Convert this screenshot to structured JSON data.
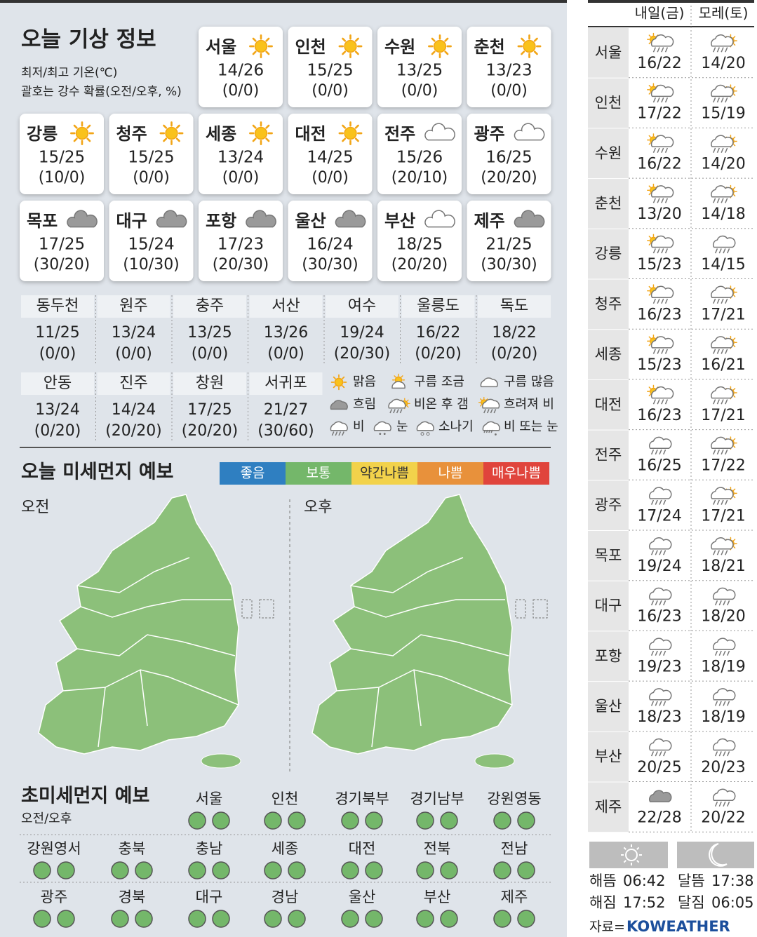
{
  "header": {
    "title": "오늘 기상 정보",
    "note1": "최저/최고 기온(℃)",
    "note2": "괄호는 강수 확률(오전/오후, %)"
  },
  "cards": [
    {
      "city": "서울",
      "temp": "14/26",
      "precip": "(0/0)",
      "icon": "sun"
    },
    {
      "city": "인천",
      "temp": "15/25",
      "precip": "(0/0)",
      "icon": "sun"
    },
    {
      "city": "수원",
      "temp": "13/25",
      "precip": "(0/0)",
      "icon": "sun"
    },
    {
      "city": "춘천",
      "temp": "13/23",
      "precip": "(0/0)",
      "icon": "sun"
    },
    {
      "city": "강릉",
      "temp": "15/25",
      "precip": "(10/0)",
      "icon": "sun"
    },
    {
      "city": "청주",
      "temp": "15/25",
      "precip": "(0/0)",
      "icon": "sun"
    },
    {
      "city": "세종",
      "temp": "13/24",
      "precip": "(0/0)",
      "icon": "sun"
    },
    {
      "city": "대전",
      "temp": "14/25",
      "precip": "(0/0)",
      "icon": "sun"
    },
    {
      "city": "전주",
      "temp": "15/26",
      "precip": "(20/10)",
      "icon": "cloudy"
    },
    {
      "city": "광주",
      "temp": "16/25",
      "precip": "(20/20)",
      "icon": "cloudy"
    },
    {
      "city": "목포",
      "temp": "17/25",
      "precip": "(30/20)",
      "icon": "overcast"
    },
    {
      "city": "대구",
      "temp": "15/24",
      "precip": "(10/30)",
      "icon": "overcast"
    },
    {
      "city": "포항",
      "temp": "17/23",
      "precip": "(20/30)",
      "icon": "overcast"
    },
    {
      "city": "울산",
      "temp": "16/24",
      "precip": "(30/30)",
      "icon": "overcast"
    },
    {
      "city": "부산",
      "temp": "18/25",
      "precip": "(20/20)",
      "icon": "cloudy"
    },
    {
      "city": "제주",
      "temp": "21/25",
      "precip": "(30/30)",
      "icon": "overcast"
    }
  ],
  "small_cities": [
    {
      "city": "동두천",
      "temp": "11/25",
      "precip": "(0/0)"
    },
    {
      "city": "원주",
      "temp": "13/24",
      "precip": "(0/0)"
    },
    {
      "city": "충주",
      "temp": "13/25",
      "precip": "(0/0)"
    },
    {
      "city": "서산",
      "temp": "13/26",
      "precip": "(0/0)"
    },
    {
      "city": "여수",
      "temp": "19/24",
      "precip": "(20/30)"
    },
    {
      "city": "울릉도",
      "temp": "16/22",
      "precip": "(0/20)"
    },
    {
      "city": "독도",
      "temp": "18/22",
      "precip": "(0/20)"
    },
    {
      "city": "안동",
      "temp": "13/24",
      "precip": "(0/20)"
    },
    {
      "city": "진주",
      "temp": "14/24",
      "precip": "(20/20)"
    },
    {
      "city": "창원",
      "temp": "17/25",
      "precip": "(20/20)"
    },
    {
      "city": "서귀포",
      "temp": "21/27",
      "precip": "(30/60)"
    }
  ],
  "legend": [
    {
      "label": "맑음",
      "icon": "sun"
    },
    {
      "label": "구름 조금",
      "icon": "few-clouds"
    },
    {
      "label": "구름 많음",
      "icon": "cloudy"
    },
    {
      "label": "흐림",
      "icon": "overcast"
    },
    {
      "label": "비온 후 갬",
      "icon": "rain-clearing"
    },
    {
      "label": "흐려져 비",
      "icon": "cloudy-rain"
    },
    {
      "label": "비",
      "icon": "rain"
    },
    {
      "label": "눈",
      "icon": "snow"
    },
    {
      "label": "소나기",
      "icon": "shower"
    },
    {
      "label": "비 또는 눈",
      "icon": "rain-snow"
    }
  ],
  "fine_dust": {
    "title": "오늘 미세먼지 예보",
    "scale": [
      {
        "label": "좋음",
        "color": "#2f7fc1"
      },
      {
        "label": "보통",
        "color": "#74b76a"
      },
      {
        "label": "약간나쁨",
        "color": "#f2d24b"
      },
      {
        "label": "나쁨",
        "color": "#e8913b"
      },
      {
        "label": "매우나쁨",
        "color": "#e0443c"
      }
    ],
    "maps": [
      {
        "label": "오전",
        "level": "보통"
      },
      {
        "label": "오후",
        "level": "보통"
      }
    ]
  },
  "ultrafine_dust": {
    "title": "초미세먼지 예보",
    "note": "오전/오후",
    "regions": [
      {
        "name": "서울",
        "levels": [
          "보통",
          "보통"
        ]
      },
      {
        "name": "인천",
        "levels": [
          "보통",
          "보통"
        ]
      },
      {
        "name": "경기북부",
        "levels": [
          "보통",
          "보통"
        ]
      },
      {
        "name": "경기남부",
        "levels": [
          "보통",
          "보통"
        ]
      },
      {
        "name": "강원영동",
        "levels": [
          "보통",
          "보통"
        ]
      },
      {
        "name": "강원영서",
        "levels": [
          "보통",
          "보통"
        ]
      },
      {
        "name": "충북",
        "levels": [
          "보통",
          "보통"
        ]
      },
      {
        "name": "충남",
        "levels": [
          "보통",
          "보통"
        ]
      },
      {
        "name": "세종",
        "levels": [
          "보통",
          "보통"
        ]
      },
      {
        "name": "대전",
        "levels": [
          "보통",
          "보통"
        ]
      },
      {
        "name": "전북",
        "levels": [
          "보통",
          "보통"
        ]
      },
      {
        "name": "전남",
        "levels": [
          "보통",
          "보통"
        ]
      },
      {
        "name": "광주",
        "levels": [
          "보통",
          "보통"
        ]
      },
      {
        "name": "경북",
        "levels": [
          "보통",
          "보통"
        ]
      },
      {
        "name": "대구",
        "levels": [
          "보통",
          "보통"
        ]
      },
      {
        "name": "경남",
        "levels": [
          "보통",
          "보통"
        ]
      },
      {
        "name": "울산",
        "levels": [
          "보통",
          "보통"
        ]
      },
      {
        "name": "부산",
        "levels": [
          "보통",
          "보통"
        ]
      },
      {
        "name": "제주",
        "levels": [
          "보통",
          "보통"
        ]
      }
    ]
  },
  "forecast": {
    "days": [
      "내일(금)",
      "모레(토)"
    ],
    "rows": [
      {
        "city": "서울",
        "d1": {
          "icon": "cloudy-rain",
          "temp": "16/22"
        },
        "d2": {
          "icon": "rain-clearing",
          "temp": "14/20"
        }
      },
      {
        "city": "인천",
        "d1": {
          "icon": "cloudy-rain",
          "temp": "17/22"
        },
        "d2": {
          "icon": "rain-clearing",
          "temp": "15/19"
        }
      },
      {
        "city": "수원",
        "d1": {
          "icon": "cloudy-rain",
          "temp": "16/22"
        },
        "d2": {
          "icon": "rain-clearing",
          "temp": "14/20"
        }
      },
      {
        "city": "춘천",
        "d1": {
          "icon": "cloudy-rain",
          "temp": "13/20"
        },
        "d2": {
          "icon": "rain-clearing",
          "temp": "14/18"
        }
      },
      {
        "city": "강릉",
        "d1": {
          "icon": "cloudy-rain",
          "temp": "15/23"
        },
        "d2": {
          "icon": "rain",
          "temp": "14/15"
        }
      },
      {
        "city": "청주",
        "d1": {
          "icon": "cloudy-rain",
          "temp": "16/23"
        },
        "d2": {
          "icon": "rain-clearing",
          "temp": "17/21"
        }
      },
      {
        "city": "세종",
        "d1": {
          "icon": "cloudy-rain",
          "temp": "15/23"
        },
        "d2": {
          "icon": "rain-clearing",
          "temp": "16/21"
        }
      },
      {
        "city": "대전",
        "d1": {
          "icon": "cloudy-rain",
          "temp": "16/23"
        },
        "d2": {
          "icon": "rain-clearing",
          "temp": "17/21"
        }
      },
      {
        "city": "전주",
        "d1": {
          "icon": "rain",
          "temp": "16/25"
        },
        "d2": {
          "icon": "rain-clearing",
          "temp": "17/22"
        }
      },
      {
        "city": "광주",
        "d1": {
          "icon": "rain",
          "temp": "17/24"
        },
        "d2": {
          "icon": "rain-clearing",
          "temp": "17/21"
        }
      },
      {
        "city": "목포",
        "d1": {
          "icon": "rain",
          "temp": "19/24"
        },
        "d2": {
          "icon": "rain-clearing",
          "temp": "18/21"
        }
      },
      {
        "city": "대구",
        "d1": {
          "icon": "rain",
          "temp": "16/23"
        },
        "d2": {
          "icon": "rain",
          "temp": "18/20"
        }
      },
      {
        "city": "포항",
        "d1": {
          "icon": "rain",
          "temp": "19/23"
        },
        "d2": {
          "icon": "rain",
          "temp": "18/19"
        }
      },
      {
        "city": "울산",
        "d1": {
          "icon": "rain",
          "temp": "18/23"
        },
        "d2": {
          "icon": "rain",
          "temp": "18/19"
        }
      },
      {
        "city": "부산",
        "d1": {
          "icon": "rain",
          "temp": "20/25"
        },
        "d2": {
          "icon": "rain",
          "temp": "20/23"
        }
      },
      {
        "city": "제주",
        "d1": {
          "icon": "overcast",
          "temp": "22/28"
        },
        "d2": {
          "icon": "rain",
          "temp": "20/22"
        }
      }
    ]
  },
  "sun_moon": {
    "sunrise": {
      "label": "해뜸",
      "time": "06:42"
    },
    "sunset": {
      "label": "해짐",
      "time": "17:52"
    },
    "moonrise": {
      "label": "달뜸",
      "time": "17:38"
    },
    "moonset": {
      "label": "달짐",
      "time": "06:05"
    }
  },
  "source": {
    "label": "자료=",
    "name": "KOWEATHER"
  }
}
